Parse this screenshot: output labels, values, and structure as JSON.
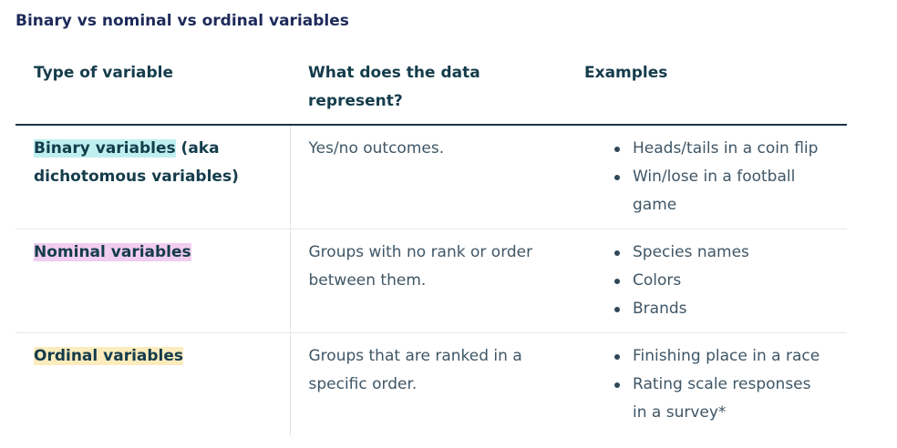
{
  "caption": "Binary vs nominal vs ordinal variables",
  "headers": {
    "type": "Type of variable",
    "represents": "What does the data represent?",
    "examples": "Examples"
  },
  "rows": [
    {
      "term": "Binary variables",
      "term_suffix": " (aka dichotomous variables)",
      "highlight_color": "#bff0ef",
      "represents": "Yes/no outcomes.",
      "examples": [
        "Heads/tails in a coin flip",
        "Win/lose in a football game"
      ]
    },
    {
      "term": "Nominal variables",
      "term_suffix": "",
      "highlight_color": "#f1cdef",
      "represents": "Groups with no rank or order between them.",
      "examples": [
        "Species names",
        "Colors",
        "Brands"
      ]
    },
    {
      "term": "Ordinal variables",
      "term_suffix": "",
      "highlight_color": "#fcebbd",
      "represents": "Groups that are ranked in a specific order.",
      "examples": [
        "Finishing place in a race",
        "Rating scale responses in a survey*"
      ]
    }
  ]
}
